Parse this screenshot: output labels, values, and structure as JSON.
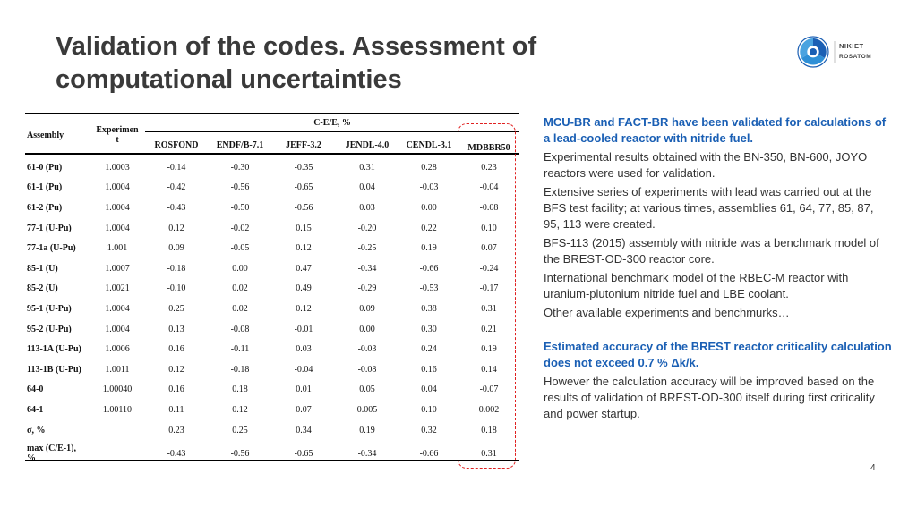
{
  "slide": {
    "title_line1": "Validation of the codes. Assessment of",
    "title_line2": "computational uncertainties",
    "page_number": "4"
  },
  "logo": {
    "brand_line1": "NIKIET",
    "brand_line2": "ROSATOM",
    "colors": {
      "ring": "#1a5fb4",
      "accent": "#2e8fd6"
    }
  },
  "table": {
    "head": {
      "assembly": "Assembly",
      "experiment_line1": "Experimen",
      "experiment_line2": "t",
      "group": "C-E/E, %",
      "cols": [
        "ROSFOND",
        "ENDF/B-7.1",
        "JEFF-3.2",
        "JENDL-4.0",
        "CENDL-3.1",
        "MDBBR50"
      ]
    },
    "rows": [
      {
        "asm": "61-0 (Pu)",
        "exp": "1.0003",
        "v": [
          "-0.14",
          "-0.30",
          "-0.35",
          "0.31",
          "0.28",
          "0.23"
        ]
      },
      {
        "asm": "61-1 (Pu)",
        "exp": "1.0004",
        "v": [
          "-0.42",
          "-0.56",
          "-0.65",
          "0.04",
          "-0.03",
          "-0.04"
        ]
      },
      {
        "asm": "61-2 (Pu)",
        "exp": "1.0004",
        "v": [
          "-0.43",
          "-0.50",
          "-0.56",
          "0.03",
          "0.00",
          "-0.08"
        ]
      },
      {
        "asm": "77-1 (U-Pu)",
        "exp": "1.0004",
        "v": [
          "0.12",
          "-0.02",
          "0.15",
          "-0.20",
          "0.22",
          "0.10"
        ]
      },
      {
        "asm": "77-1a (U-Pu)",
        "exp": "1.001",
        "v": [
          "0.09",
          "-0.05",
          "0.12",
          "-0.25",
          "0.19",
          "0.07"
        ]
      },
      {
        "asm": "85-1 (U)",
        "exp": "1.0007",
        "v": [
          "-0.18",
          "0.00",
          "0.47",
          "-0.34",
          "-0.66",
          "-0.24"
        ]
      },
      {
        "asm": "85-2 (U)",
        "exp": "1.0021",
        "v": [
          "-0.10",
          "0.02",
          "0.49",
          "-0.29",
          "-0.53",
          "-0.17"
        ]
      },
      {
        "asm": "95-1 (U-Pu)",
        "exp": "1.0004",
        "v": [
          "0.25",
          "0.02",
          "0.12",
          "0.09",
          "0.38",
          "0.31"
        ]
      },
      {
        "asm": "95-2 (U-Pu)",
        "exp": "1.0004",
        "v": [
          "0.13",
          "-0.08",
          "-0.01",
          "0.00",
          "0.30",
          "0.21"
        ]
      },
      {
        "asm": "113-1A (U-Pu)",
        "exp": "1.0006",
        "v": [
          "0.16",
          "-0.11",
          "0.03",
          "-0.03",
          "0.24",
          "0.19"
        ]
      },
      {
        "asm": "113-1B (U-Pu)",
        "exp": "1.0011",
        "v": [
          "0.12",
          "-0.18",
          "-0.04",
          "-0.08",
          "0.16",
          "0.14"
        ]
      },
      {
        "asm": "64-0",
        "exp": "1.00040",
        "v": [
          "0.16",
          "0.18",
          "0.01",
          "0.05",
          "0.04",
          "-0.07"
        ]
      },
      {
        "asm": "64-1",
        "exp": "1.00110",
        "v": [
          "0.11",
          "0.12",
          "0.07",
          "0.005",
          "0.10",
          "0.002"
        ]
      },
      {
        "asm": "σ, %",
        "exp": "",
        "v": [
          "0.23",
          "0.25",
          "0.34",
          "0.19",
          "0.32",
          "0.18"
        ]
      },
      {
        "asm_line1": "max (C/E-1),",
        "asm_line2": "%",
        "exp": "",
        "v": [
          "-0.43",
          "-0.56",
          "-0.65",
          "-0.34",
          "-0.66",
          "0.31"
        ]
      }
    ],
    "highlight_color": "#e02020"
  },
  "notes": {
    "p1": "MCU-BR and FACT-BR have been validated for calculations of a lead-cooled reactor with nitride fuel.",
    "p2": "Experimental results obtained with the BN-350, BN-600, JOYO reactors were used for validation.",
    "p3": "Extensive series of experiments with lead was carried out at the BFS test facility; at various times, assemblies 61, 64, 77, 85, 87, 95, 113 were created.",
    "p4": "BFS-113 (2015) assembly with nitride was a benchmark model of the BREST-OD-300 reactor core.",
    "p5": "International benchmark model of the RBEC-M reactor with uranium-plutonium nitride fuel and LBE coolant.",
    "p6": "Other available experiments and benchmurks…",
    "p7": "Estimated accuracy of the BREST reactor criticality calculation does not exceed 0.7 % Δk/k.",
    "p8": "However the calculation accuracy will be improved based on the results of validation of BREST-OD-300 itself during first criticality and power startup.",
    "blue_color": "#1a5fb4"
  }
}
